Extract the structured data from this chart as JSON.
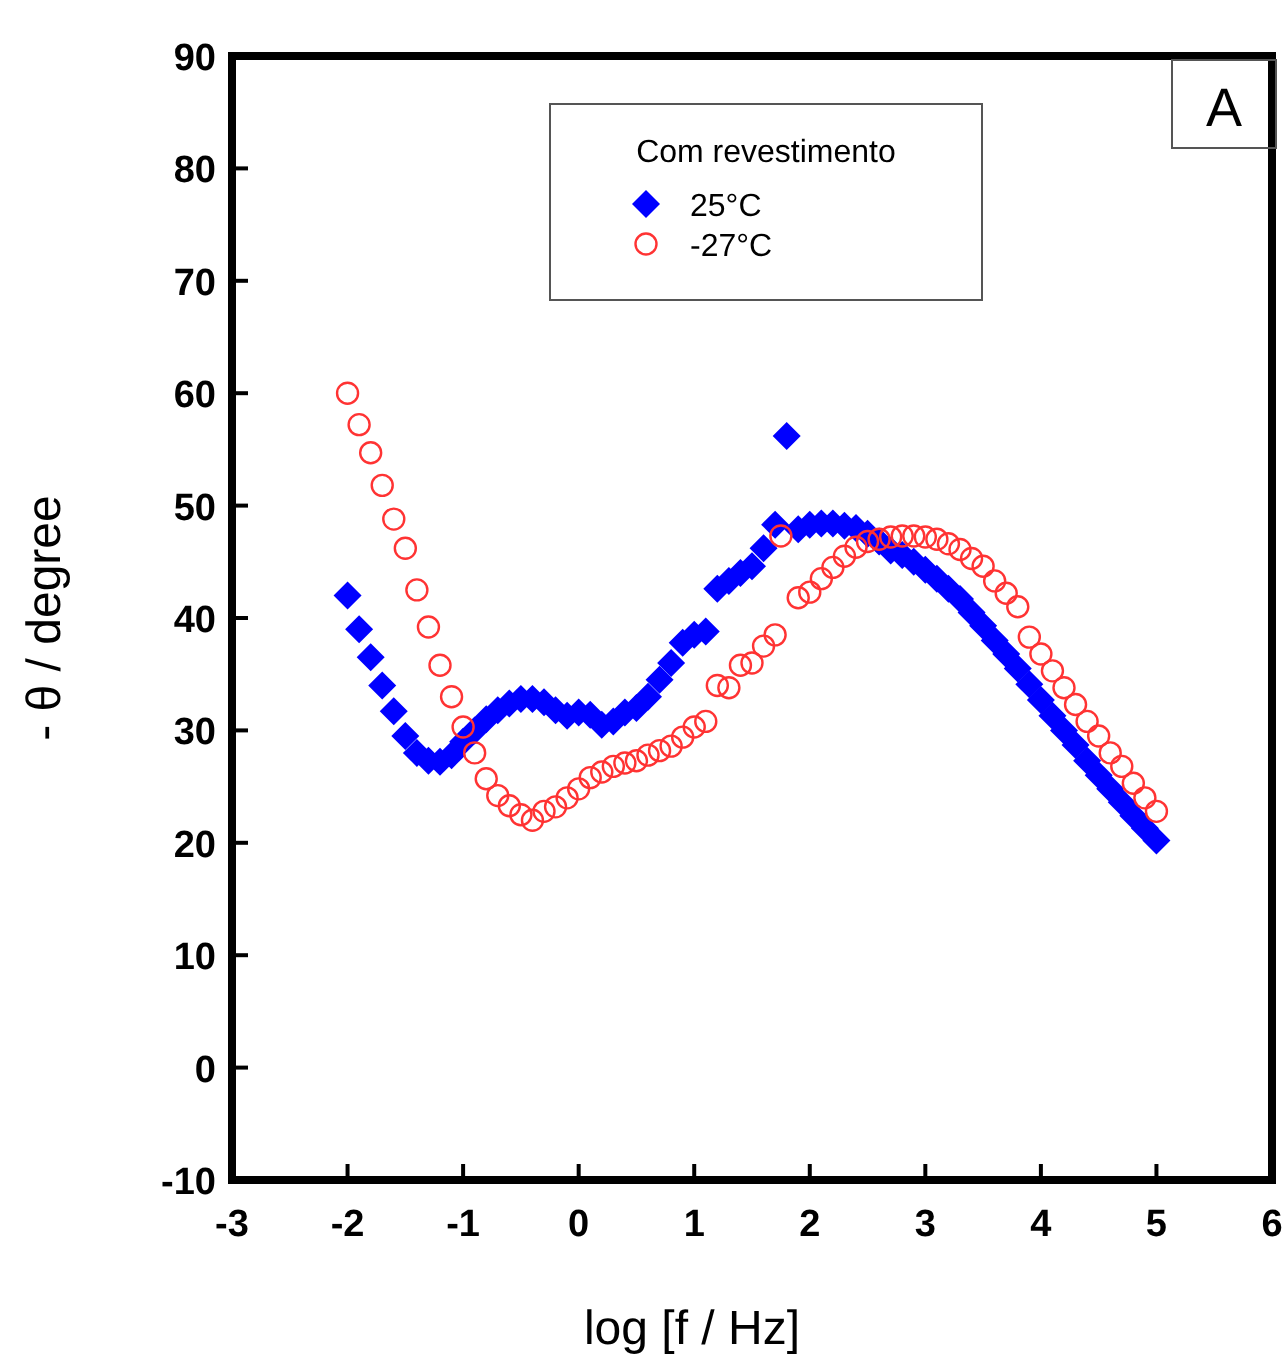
{
  "chart_data": {
    "type": "scatter",
    "xlabel": "log [f / Hz]",
    "ylabel": "- θ / degree",
    "legend_title": "Com revestimento",
    "legend": "top",
    "annotations": [
      "A"
    ],
    "xlim": [
      -3,
      6
    ],
    "xticks": [
      -3,
      -2,
      -1,
      0,
      1,
      2,
      3,
      4,
      5,
      6
    ],
    "ylim": [
      -10,
      90
    ],
    "yticks": [
      -10,
      0,
      10,
      20,
      30,
      40,
      50,
      60,
      70,
      80,
      90
    ],
    "grid": false,
    "series": [
      {
        "name": "25°C",
        "color": "#0000ff",
        "marker": "diamond",
        "x": [
          -2,
          -1.9,
          -1.8,
          -1.7,
          -1.6,
          -1.5,
          -1.4,
          -1.3,
          -1.2,
          -1.1,
          -1,
          -0.9,
          -0.8,
          -0.7,
          -0.6,
          -0.5,
          -0.4,
          -0.3,
          -0.2,
          -0.1,
          0,
          0.1,
          0.2,
          0.3,
          0.4,
          0.5,
          0.6,
          0.7,
          0.8,
          0.9,
          1,
          1.1,
          1.2,
          1.3,
          1.4,
          1.5,
          1.6,
          1.7,
          1.8,
          1.9,
          2,
          2.1,
          2.2,
          2.3,
          2.4,
          2.5,
          2.6,
          2.7,
          2.8,
          2.9,
          3,
          3.1,
          3.2,
          3.3,
          3.4,
          3.5,
          3.6,
          3.7,
          3.8,
          3.9,
          4,
          4.1,
          4.2,
          4.3,
          4.4,
          4.5,
          4.6,
          4.7,
          4.8,
          4.9,
          5
        ],
        "values": [
          42,
          39,
          36.5,
          34,
          31.7,
          29.5,
          28,
          27.3,
          27.2,
          27.8,
          29,
          30,
          31,
          31.8,
          32.4,
          32.8,
          32.8,
          32.5,
          31.8,
          31.3,
          31.6,
          31.4,
          30.5,
          30.8,
          31.6,
          32,
          33,
          34.5,
          36,
          37.8,
          38.5,
          38.8,
          42.6,
          43.3,
          44,
          44.6,
          46.2,
          48.3,
          56.2,
          47.9,
          48.3,
          48.4,
          48.4,
          48.2,
          48,
          47.5,
          46.8,
          46,
          45.6,
          45,
          44.3,
          43.5,
          42.6,
          41.7,
          40.5,
          39.3,
          38,
          36.8,
          35.5,
          34.1,
          32.7,
          31.3,
          30,
          28.7,
          27.3,
          26,
          24.8,
          23.6,
          22.4,
          21.3,
          20.2
        ]
      },
      {
        "name": "-27°C",
        "color": "#ff3333",
        "marker": "circle",
        "x": [
          -2,
          -1.9,
          -1.8,
          -1.7,
          -1.6,
          -1.5,
          -1.4,
          -1.3,
          -1.2,
          -1.1,
          -1,
          -0.9,
          -0.8,
          -0.7,
          -0.6,
          -0.5,
          -0.4,
          -0.3,
          -0.2,
          -0.1,
          0,
          0.1,
          0.2,
          0.3,
          0.4,
          0.5,
          0.6,
          0.7,
          0.8,
          0.9,
          1,
          1.1,
          1.2,
          1.3,
          1.4,
          1.5,
          1.6,
          1.7,
          1.75,
          1.9,
          2,
          2.1,
          2.2,
          2.3,
          2.4,
          2.5,
          2.6,
          2.7,
          2.8,
          2.9,
          3,
          3.1,
          3.2,
          3.3,
          3.4,
          3.5,
          3.6,
          3.7,
          3.8,
          3.9,
          4,
          4.1,
          4.2,
          4.3,
          4.4,
          4.5,
          4.6,
          4.7,
          4.8,
          4.9,
          5
        ],
        "values": [
          60,
          57.2,
          54.7,
          51.8,
          48.8,
          46.2,
          42.5,
          39.2,
          35.8,
          33,
          30.3,
          28,
          25.7,
          24.2,
          23.3,
          22.5,
          22,
          22.8,
          23.2,
          24,
          24.8,
          25.8,
          26.3,
          26.8,
          27.1,
          27.3,
          27.8,
          28.2,
          28.6,
          29.4,
          30.3,
          30.8,
          34,
          33.8,
          35.8,
          36,
          37.5,
          38.5,
          47.3,
          41.8,
          42.3,
          43.5,
          44.5,
          45.5,
          46.3,
          46.8,
          47,
          47.2,
          47.3,
          47.3,
          47.2,
          47,
          46.6,
          46.1,
          45.3,
          44.6,
          43.3,
          42.2,
          41,
          38.3,
          36.8,
          35.3,
          33.8,
          32.3,
          30.8,
          29.5,
          28,
          26.8,
          25.3,
          24,
          22.8
        ]
      }
    ]
  }
}
